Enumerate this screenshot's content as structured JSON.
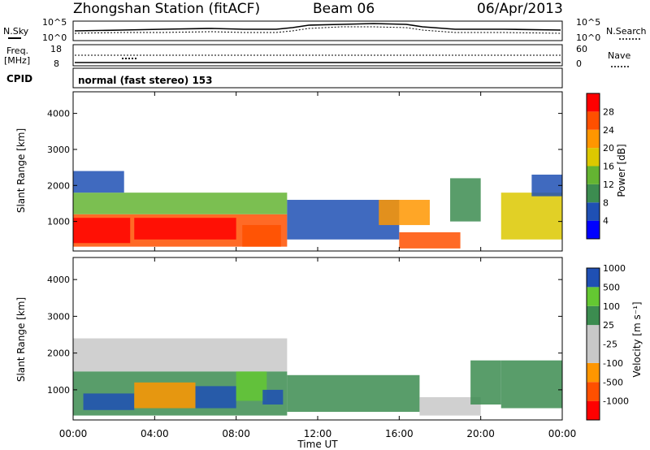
{
  "header": {
    "station": "Zhongshan Station (fitACF)",
    "beam": "Beam 06",
    "date": "06/Apr/2013"
  },
  "top_panels": {
    "nsky_label": "N.Sky",
    "nsky_ticks": [
      "10^5",
      "10^0"
    ],
    "nsearch_label": "N.Search",
    "nsearch_ticks": [
      "10^5",
      "10^0"
    ],
    "freq_label": "Freq.",
    "freq_unit": "[MHz]",
    "freq_ticks": [
      "18",
      "8"
    ],
    "nave_label": "Nave",
    "nave_ticks": [
      "60",
      "0"
    ],
    "cpid_label": "CPID",
    "cpid_text": "normal (fast stereo) 153"
  },
  "colors": {
    "power": [
      "#0000ff",
      "#1f50b4",
      "#3c8c50",
      "#64b432",
      "#dcc800",
      "#ff9600",
      "#ff5000",
      "#ff0000"
    ],
    "velocity": [
      "#ff0000",
      "#ff5000",
      "#ff9600",
      "#c8c8c8",
      "#c8c8c8",
      "#3c8c50",
      "#64c832",
      "#1f50b4"
    ]
  },
  "chart_data": [
    {
      "type": "heatmap",
      "panel": "power",
      "ylabel": "Slant Range [km]",
      "yticks": [
        1000,
        2000,
        3000,
        4000
      ],
      "ylim": [
        180,
        4600
      ],
      "xlim": [
        0,
        24
      ],
      "colorbar_label": "Power [dB]",
      "colorbar_ticks": [
        "4",
        "8",
        "12",
        "16",
        "20",
        "24",
        "28"
      ],
      "bands": [
        {
          "t0": 0,
          "t1": 10.5,
          "r0": 300,
          "r1": 1200,
          "level": 6
        },
        {
          "t0": 0,
          "t1": 2.8,
          "r0": 400,
          "r1": 1100,
          "level": 7
        },
        {
          "t0": 3,
          "t1": 8,
          "r0": 500,
          "r1": 1100,
          "level": 7
        },
        {
          "t0": 8.3,
          "t1": 10.2,
          "r0": 300,
          "r1": 900,
          "level": 6
        },
        {
          "t0": 0,
          "t1": 10.5,
          "r0": 1200,
          "r1": 1800,
          "level": 3
        },
        {
          "t0": 0,
          "t1": 2.5,
          "r0": 1800,
          "r1": 2400,
          "level": 1
        },
        {
          "t0": 10.5,
          "t1": 16,
          "r0": 500,
          "r1": 1600,
          "level": 1
        },
        {
          "t0": 15,
          "t1": 17.5,
          "r0": 900,
          "r1": 1600,
          "level": 5
        },
        {
          "t0": 16,
          "t1": 19,
          "r0": 250,
          "r1": 700,
          "level": 6
        },
        {
          "t0": 18.5,
          "t1": 20,
          "r0": 1000,
          "r1": 2200,
          "level": 2
        },
        {
          "t0": 21,
          "t1": 24,
          "r0": 500,
          "r1": 1800,
          "level": 4
        },
        {
          "t0": 22.5,
          "t1": 24,
          "r0": 1700,
          "r1": 2300,
          "level": 1
        }
      ]
    },
    {
      "type": "heatmap",
      "panel": "velocity",
      "ylabel": "Slant Range [km]",
      "yticks": [
        1000,
        2000,
        3000,
        4000
      ],
      "ylim": [
        180,
        4600
      ],
      "xlim": [
        0,
        24
      ],
      "xticks": [
        "00:00",
        "04:00",
        "08:00",
        "12:00",
        "16:00",
        "20:00",
        "00:00"
      ],
      "xlabel": "Time UT",
      "colorbar_label": "Velocity [m s⁻¹]",
      "colorbar_ticks": [
        "-1000",
        "-500",
        "-100",
        "-25",
        "25",
        "100",
        "500",
        "1000"
      ],
      "bands": [
        {
          "t0": 0,
          "t1": 10.5,
          "r0": 300,
          "r1": 1500,
          "level": 5
        },
        {
          "t0": 0.5,
          "t1": 3,
          "r0": 450,
          "r1": 900,
          "level": 7
        },
        {
          "t0": 3,
          "t1": 6,
          "r0": 500,
          "r1": 1200,
          "level": 2
        },
        {
          "t0": 6,
          "t1": 8,
          "r0": 500,
          "r1": 1100,
          "level": 7
        },
        {
          "t0": 8,
          "t1": 9.5,
          "r0": 700,
          "r1": 1500,
          "level": 6
        },
        {
          "t0": 9.3,
          "t1": 10.3,
          "r0": 600,
          "r1": 1000,
          "level": 7
        },
        {
          "t0": 0,
          "t1": 10.5,
          "r0": 1500,
          "r1": 2400,
          "level": 3
        },
        {
          "t0": 10.5,
          "t1": 17,
          "r0": 400,
          "r1": 1400,
          "level": 5
        },
        {
          "t0": 17,
          "t1": 20,
          "r0": 300,
          "r1": 800,
          "level": 3
        },
        {
          "t0": 19.5,
          "t1": 21,
          "r0": 600,
          "r1": 1800,
          "level": 5
        },
        {
          "t0": 21,
          "t1": 24,
          "r0": 500,
          "r1": 1800,
          "level": 5
        }
      ]
    }
  ]
}
